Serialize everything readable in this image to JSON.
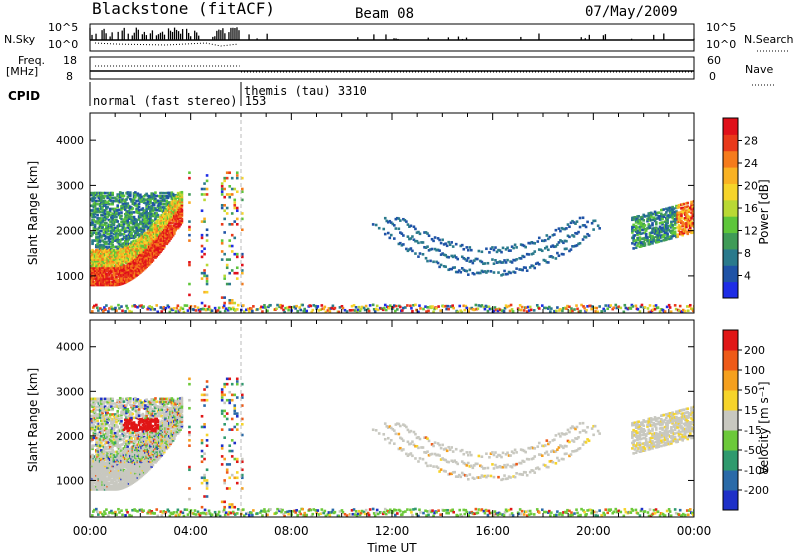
{
  "header": {
    "station": "Blackstone (fitACF)",
    "beam": "Beam 08",
    "date": "07/May/2009"
  },
  "top_panels": {
    "nsky_label": "N.Sky",
    "nsky_ticks": [
      "10^5",
      "10^0"
    ],
    "nsearch_label": "N.Search",
    "nsearch_ticks": [
      "10^5",
      "10^0"
    ],
    "freq_label_1": "Freq.",
    "freq_label_2": "[MHz]",
    "freq_ticks": [
      "18",
      "8"
    ],
    "nave_label": "Nave",
    "nave_ticks": [
      "60",
      "0"
    ],
    "cpid_label": "CPID",
    "modes": [
      {
        "text": "normal (fast stereo) 153"
      },
      {
        "text": "themis (tau) 3310"
      }
    ]
  },
  "chart_data": [
    {
      "type": "heatmap",
      "title": "",
      "ylabel": "Slant Range [km]",
      "xlabel": "",
      "xlim": [
        0,
        24
      ],
      "ylim": [
        180,
        4600
      ],
      "yticks": [
        "1000",
        "2000",
        "3000",
        "4000"
      ],
      "colorbar": {
        "label": "Power [dB]",
        "ticks": [
          "4",
          "8",
          "12",
          "16",
          "20",
          "24",
          "28"
        ],
        "colors": [
          "#1e2de6",
          "#1f53a6",
          "#2a7a8c",
          "#3f9b57",
          "#5ec63a",
          "#b9d934",
          "#f6d42a",
          "#f9b223",
          "#f57b1c",
          "#e9391a",
          "#e0101a"
        ]
      },
      "echo_features": [
        {
          "name": "early ionospheric scatter",
          "t": [
            0.0,
            3.6
          ],
          "range_km": [
            800,
            2800
          ]
        },
        {
          "name": "ground scatter arc",
          "t": [
            11.2,
            20.2
          ],
          "range_km": [
            900,
            2200
          ]
        },
        {
          "name": "late scatter",
          "t": [
            21.5,
            24.0
          ],
          "range_km": [
            1500,
            2500
          ]
        },
        {
          "name": "near-range clutter",
          "t": [
            0.0,
            24.0
          ],
          "range_km": [
            180,
            350
          ]
        }
      ]
    },
    {
      "type": "heatmap",
      "title": "",
      "ylabel": "Slant Range [km]",
      "xlabel": "Time UT",
      "xlim": [
        0,
        24
      ],
      "ylim": [
        180,
        4600
      ],
      "yticks": [
        "1000",
        "2000",
        "3000",
        "4000"
      ],
      "xticks": [
        "00:00",
        "04:00",
        "08:00",
        "12:00",
        "16:00",
        "20:00",
        "00:00"
      ],
      "colorbar": {
        "label": "Velocity [m s⁻¹]",
        "ticks": [
          "200",
          "100",
          "50",
          "15",
          "-15",
          "-50",
          "-100",
          "-200"
        ],
        "colors": [
          "#1e30c8",
          "#2a6aa8",
          "#2f9a6e",
          "#6cc93a",
          "#c8c8c0",
          "#f6d42a",
          "#f5a01e",
          "#ee5a18",
          "#e01616"
        ]
      },
      "echo_features": [
        {
          "name": "early low-velocity scatter",
          "t": [
            0.0,
            3.6
          ],
          "range_km": [
            800,
            2800
          ]
        },
        {
          "name": "negative velocity patch",
          "t": [
            1.3,
            2.7
          ],
          "range_km": [
            2100,
            2400
          ]
        },
        {
          "name": "ground scatter arc",
          "t": [
            11.2,
            20.2
          ],
          "range_km": [
            900,
            2200
          ]
        },
        {
          "name": "late scatter",
          "t": [
            21.5,
            24.0
          ],
          "range_km": [
            1600,
            2500
          ]
        }
      ]
    }
  ]
}
